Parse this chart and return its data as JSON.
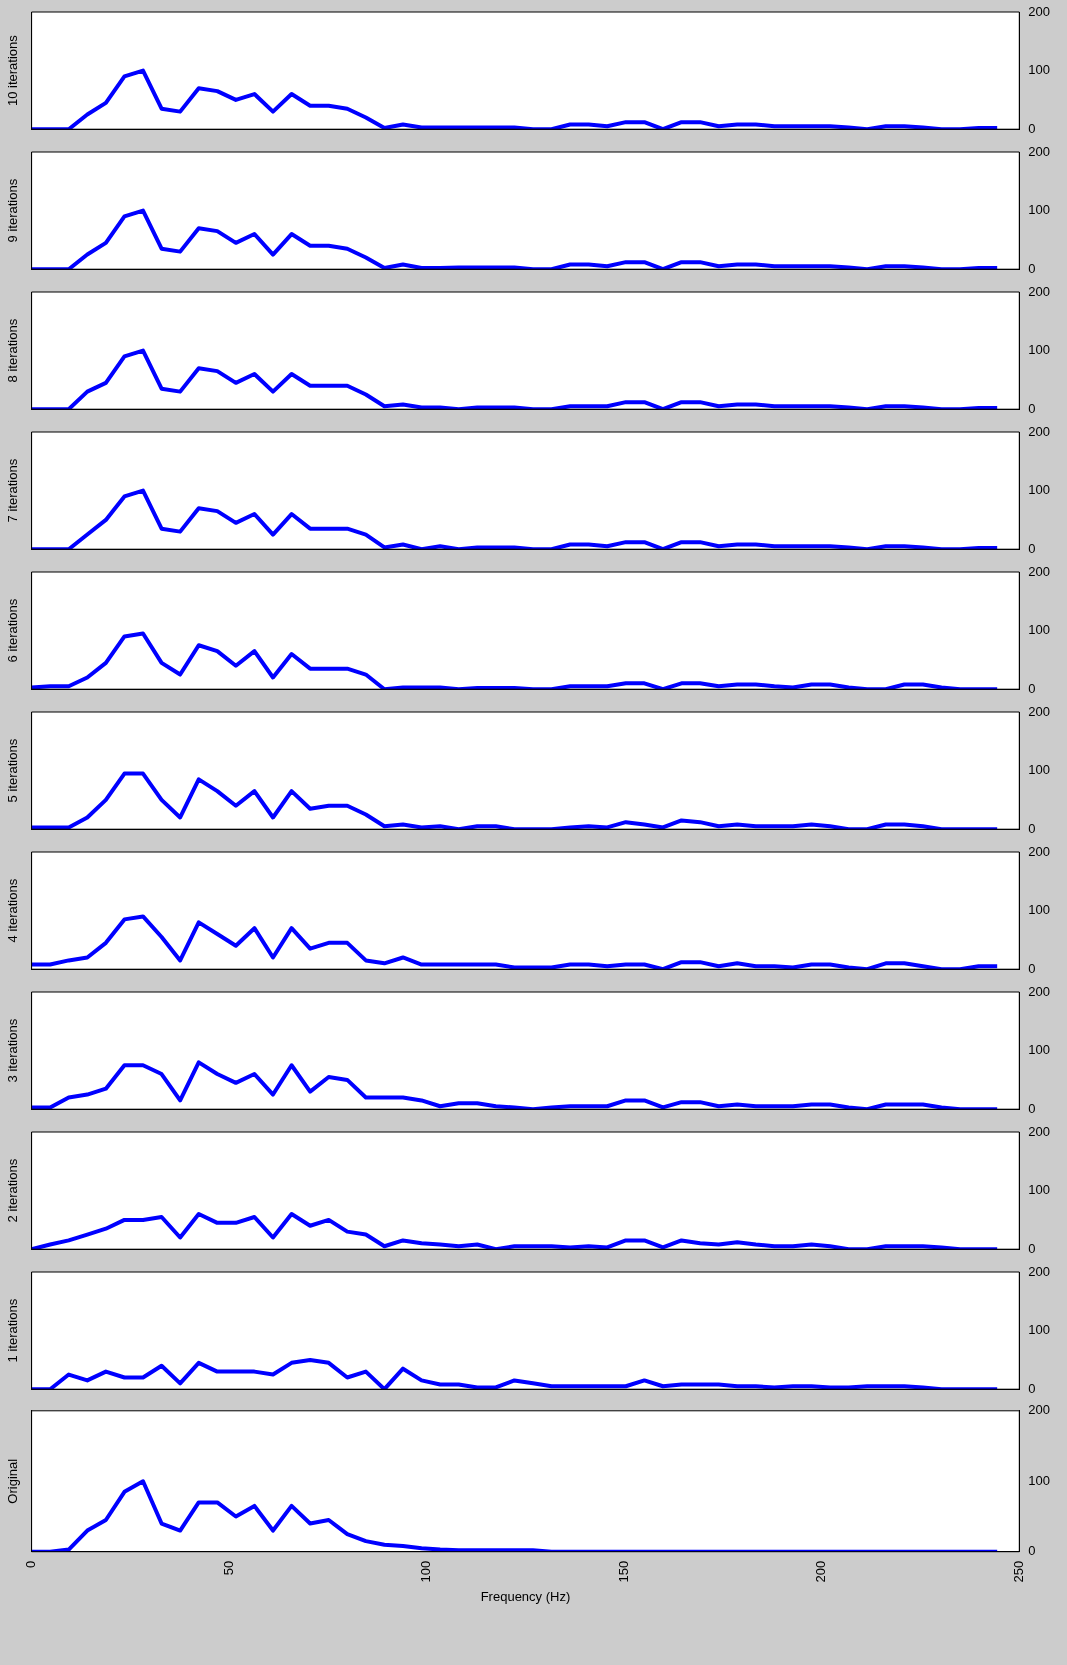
{
  "chart_data": [
    {
      "type": "line",
      "ylabel": "10 iterations",
      "color": "#0000ff",
      "tick_labels": "y",
      "xlim": [
        0,
        250
      ],
      "ylim": [
        0,
        200
      ],
      "yticks": [
        0,
        100,
        200
      ],
      "x": [
        0,
        4.7,
        9.4,
        14.1,
        18.8,
        23.5,
        28.2,
        32.9,
        37.6,
        42.3,
        47,
        51.7,
        56.4,
        61.1,
        65.8,
        70.5,
        75.2,
        79.9,
        84.6,
        89.3,
        94,
        98.7,
        103.4,
        108.1,
        112.8,
        117.5,
        122.2,
        126.9,
        131.6,
        136.3,
        141,
        145.7,
        150.4,
        155.1,
        159.8,
        164.5,
        169.2,
        173.9,
        178.6,
        183.3,
        188,
        192.7,
        197.4,
        202.1,
        206.8,
        211.5,
        216.2,
        220.9,
        225.6,
        230.3,
        235,
        239.7,
        244.4
      ],
      "values": [
        0,
        0,
        0,
        25,
        45,
        90,
        100,
        35,
        30,
        70,
        65,
        50,
        60,
        30,
        60,
        40,
        40,
        35,
        20,
        2,
        8,
        3,
        3,
        3,
        3,
        3,
        3,
        0,
        0,
        8,
        8,
        5,
        12,
        12,
        0,
        12,
        12,
        5,
        8,
        8,
        5,
        5,
        5,
        5,
        3,
        0,
        5,
        5,
        3,
        0,
        0,
        2,
        2
      ]
    },
    {
      "type": "line",
      "ylabel": "9 iterations",
      "color": "#0000ff",
      "tick_labels": "y",
      "xlim": [
        0,
        250
      ],
      "ylim": [
        0,
        200
      ],
      "yticks": [
        0,
        100,
        200
      ],
      "x": [
        0,
        4.7,
        9.4,
        14.1,
        18.8,
        23.5,
        28.2,
        32.9,
        37.6,
        42.3,
        47,
        51.7,
        56.4,
        61.1,
        65.8,
        70.5,
        75.2,
        79.9,
        84.6,
        89.3,
        94,
        98.7,
        103.4,
        108.1,
        112.8,
        117.5,
        122.2,
        126.9,
        131.6,
        136.3,
        141,
        145.7,
        150.4,
        155.1,
        159.8,
        164.5,
        169.2,
        173.9,
        178.6,
        183.3,
        188,
        192.7,
        197.4,
        202.1,
        206.8,
        211.5,
        216.2,
        220.9,
        225.6,
        230.3,
        235,
        239.7,
        244.4
      ],
      "values": [
        0,
        0,
        0,
        25,
        45,
        90,
        100,
        35,
        30,
        70,
        65,
        45,
        60,
        25,
        60,
        40,
        40,
        35,
        20,
        2,
        8,
        2,
        2,
        3,
        3,
        3,
        3,
        0,
        0,
        8,
        8,
        5,
        12,
        12,
        0,
        12,
        12,
        5,
        8,
        8,
        5,
        5,
        5,
        5,
        3,
        0,
        5,
        5,
        3,
        0,
        0,
        2,
        2
      ]
    },
    {
      "type": "line",
      "ylabel": "8 iterations",
      "color": "#0000ff",
      "tick_labels": "y",
      "xlim": [
        0,
        250
      ],
      "ylim": [
        0,
        200
      ],
      "yticks": [
        0,
        100,
        200
      ],
      "x": [
        0,
        4.7,
        9.4,
        14.1,
        18.8,
        23.5,
        28.2,
        32.9,
        37.6,
        42.3,
        47,
        51.7,
        56.4,
        61.1,
        65.8,
        70.5,
        75.2,
        79.9,
        84.6,
        89.3,
        94,
        98.7,
        103.4,
        108.1,
        112.8,
        117.5,
        122.2,
        126.9,
        131.6,
        136.3,
        141,
        145.7,
        150.4,
        155.1,
        159.8,
        164.5,
        169.2,
        173.9,
        178.6,
        183.3,
        188,
        192.7,
        197.4,
        202.1,
        206.8,
        211.5,
        216.2,
        220.9,
        225.6,
        230.3,
        235,
        239.7,
        244.4
      ],
      "values": [
        0,
        0,
        0,
        30,
        45,
        90,
        100,
        35,
        30,
        70,
        65,
        45,
        60,
        30,
        60,
        40,
        40,
        40,
        25,
        5,
        8,
        3,
        3,
        0,
        3,
        3,
        3,
        0,
        0,
        5,
        5,
        5,
        12,
        12,
        0,
        12,
        12,
        5,
        8,
        8,
        5,
        5,
        5,
        5,
        3,
        0,
        5,
        5,
        3,
        0,
        0,
        2,
        2
      ]
    },
    {
      "type": "line",
      "ylabel": "7 iterations",
      "color": "#0000ff",
      "tick_labels": "y",
      "xlim": [
        0,
        250
      ],
      "ylim": [
        0,
        200
      ],
      "yticks": [
        0,
        100,
        200
      ],
      "x": [
        0,
        4.7,
        9.4,
        14.1,
        18.8,
        23.5,
        28.2,
        32.9,
        37.6,
        42.3,
        47,
        51.7,
        56.4,
        61.1,
        65.8,
        70.5,
        75.2,
        79.9,
        84.6,
        89.3,
        94,
        98.7,
        103.4,
        108.1,
        112.8,
        117.5,
        122.2,
        126.9,
        131.6,
        136.3,
        141,
        145.7,
        150.4,
        155.1,
        159.8,
        164.5,
        169.2,
        173.9,
        178.6,
        183.3,
        188,
        192.7,
        197.4,
        202.1,
        206.8,
        211.5,
        216.2,
        220.9,
        225.6,
        230.3,
        235,
        239.7,
        244.4
      ],
      "values": [
        0,
        0,
        0,
        25,
        50,
        90,
        100,
        35,
        30,
        70,
        65,
        45,
        60,
        25,
        60,
        35,
        35,
        35,
        25,
        3,
        8,
        0,
        5,
        0,
        3,
        3,
        3,
        0,
        0,
        8,
        8,
        5,
        12,
        12,
        0,
        12,
        12,
        5,
        8,
        8,
        5,
        5,
        5,
        5,
        3,
        0,
        5,
        5,
        3,
        0,
        0,
        2,
        2
      ]
    },
    {
      "type": "line",
      "ylabel": "6 iterations",
      "color": "#0000ff",
      "tick_labels": "y",
      "xlim": [
        0,
        250
      ],
      "ylim": [
        0,
        200
      ],
      "yticks": [
        0,
        100,
        200
      ],
      "x": [
        0,
        4.7,
        9.4,
        14.1,
        18.8,
        23.5,
        28.2,
        32.9,
        37.6,
        42.3,
        47,
        51.7,
        56.4,
        61.1,
        65.8,
        70.5,
        75.2,
        79.9,
        84.6,
        89.3,
        94,
        98.7,
        103.4,
        108.1,
        112.8,
        117.5,
        122.2,
        126.9,
        131.6,
        136.3,
        141,
        145.7,
        150.4,
        155.1,
        159.8,
        164.5,
        169.2,
        173.9,
        178.6,
        183.3,
        188,
        192.7,
        197.4,
        202.1,
        206.8,
        211.5,
        216.2,
        220.9,
        225.6,
        230.3,
        235,
        239.7,
        244.4
      ],
      "values": [
        3,
        5,
        5,
        20,
        45,
        90,
        95,
        45,
        25,
        75,
        65,
        40,
        65,
        20,
        60,
        35,
        35,
        35,
        25,
        0,
        3,
        3,
        3,
        0,
        2,
        2,
        2,
        0,
        0,
        5,
        5,
        5,
        10,
        10,
        0,
        10,
        10,
        5,
        8,
        8,
        5,
        3,
        8,
        8,
        3,
        0,
        0,
        8,
        8,
        3,
        0,
        0,
        0
      ]
    },
    {
      "type": "line",
      "ylabel": "5 iterations",
      "color": "#0000ff",
      "tick_labels": "y",
      "xlim": [
        0,
        250
      ],
      "ylim": [
        0,
        200
      ],
      "yticks": [
        0,
        100,
        200
      ],
      "x": [
        0,
        4.7,
        9.4,
        14.1,
        18.8,
        23.5,
        28.2,
        32.9,
        37.6,
        42.3,
        47,
        51.7,
        56.4,
        61.1,
        65.8,
        70.5,
        75.2,
        79.9,
        84.6,
        89.3,
        94,
        98.7,
        103.4,
        108.1,
        112.8,
        117.5,
        122.2,
        126.9,
        131.6,
        136.3,
        141,
        145.7,
        150.4,
        155.1,
        159.8,
        164.5,
        169.2,
        173.9,
        178.6,
        183.3,
        188,
        192.7,
        197.4,
        202.1,
        206.8,
        211.5,
        216.2,
        220.9,
        225.6,
        230.3,
        235,
        239.7,
        244.4
      ],
      "values": [
        3,
        3,
        3,
        20,
        50,
        95,
        95,
        50,
        20,
        85,
        65,
        40,
        65,
        20,
        65,
        35,
        40,
        40,
        25,
        5,
        8,
        3,
        5,
        0,
        5,
        5,
        0,
        0,
        0,
        3,
        5,
        3,
        12,
        8,
        3,
        15,
        12,
        5,
        8,
        5,
        5,
        5,
        8,
        5,
        0,
        0,
        8,
        8,
        5,
        0,
        0,
        0,
        0
      ]
    },
    {
      "type": "line",
      "ylabel": "4 iterations",
      "color": "#0000ff",
      "tick_labels": "y",
      "xlim": [
        0,
        250
      ],
      "ylim": [
        0,
        200
      ],
      "yticks": [
        0,
        100,
        200
      ],
      "x": [
        0,
        4.7,
        9.4,
        14.1,
        18.8,
        23.5,
        28.2,
        32.9,
        37.6,
        42.3,
        47,
        51.7,
        56.4,
        61.1,
        65.8,
        70.5,
        75.2,
        79.9,
        84.6,
        89.3,
        94,
        98.7,
        103.4,
        108.1,
        112.8,
        117.5,
        122.2,
        126.9,
        131.6,
        136.3,
        141,
        145.7,
        150.4,
        155.1,
        159.8,
        164.5,
        169.2,
        173.9,
        178.6,
        183.3,
        188,
        192.7,
        197.4,
        202.1,
        206.8,
        211.5,
        216.2,
        220.9,
        225.6,
        230.3,
        235,
        239.7,
        244.4
      ],
      "values": [
        8,
        8,
        15,
        20,
        45,
        85,
        90,
        55,
        15,
        80,
        60,
        40,
        70,
        20,
        70,
        35,
        45,
        45,
        15,
        10,
        20,
        8,
        8,
        8,
        8,
        8,
        3,
        3,
        3,
        8,
        8,
        5,
        8,
        8,
        0,
        12,
        12,
        5,
        10,
        5,
        5,
        3,
        8,
        8,
        3,
        0,
        10,
        10,
        5,
        0,
        0,
        5,
        5
      ]
    },
    {
      "type": "line",
      "ylabel": "3 iterations",
      "color": "#0000ff",
      "tick_labels": "y",
      "xlim": [
        0,
        250
      ],
      "ylim": [
        0,
        200
      ],
      "yticks": [
        0,
        100,
        200
      ],
      "x": [
        0,
        4.7,
        9.4,
        14.1,
        18.8,
        23.5,
        28.2,
        32.9,
        37.6,
        42.3,
        47,
        51.7,
        56.4,
        61.1,
        65.8,
        70.5,
        75.2,
        79.9,
        84.6,
        89.3,
        94,
        98.7,
        103.4,
        108.1,
        112.8,
        117.5,
        122.2,
        126.9,
        131.6,
        136.3,
        141,
        145.7,
        150.4,
        155.1,
        159.8,
        164.5,
        169.2,
        173.9,
        178.6,
        183.3,
        188,
        192.7,
        197.4,
        202.1,
        206.8,
        211.5,
        216.2,
        220.9,
        225.6,
        230.3,
        235,
        239.7,
        244.4
      ],
      "values": [
        3,
        3,
        20,
        25,
        35,
        75,
        75,
        60,
        15,
        80,
        60,
        45,
        60,
        25,
        75,
        30,
        55,
        50,
        20,
        20,
        20,
        15,
        5,
        10,
        10,
        5,
        3,
        0,
        3,
        5,
        5,
        5,
        15,
        15,
        3,
        12,
        12,
        5,
        8,
        5,
        5,
        5,
        8,
        8,
        3,
        0,
        8,
        8,
        8,
        3,
        0,
        0,
        0
      ]
    },
    {
      "type": "line",
      "ylabel": "2 iterations",
      "color": "#0000ff",
      "tick_labels": "y",
      "xlim": [
        0,
        250
      ],
      "ylim": [
        0,
        200
      ],
      "yticks": [
        0,
        100,
        200
      ],
      "x": [
        0,
        4.7,
        9.4,
        14.1,
        18.8,
        23.5,
        28.2,
        32.9,
        37.6,
        42.3,
        47,
        51.7,
        56.4,
        61.1,
        65.8,
        70.5,
        75.2,
        79.9,
        84.6,
        89.3,
        94,
        98.7,
        103.4,
        108.1,
        112.8,
        117.5,
        122.2,
        126.9,
        131.6,
        136.3,
        141,
        145.7,
        150.4,
        155.1,
        159.8,
        164.5,
        169.2,
        173.9,
        178.6,
        183.3,
        188,
        192.7,
        197.4,
        202.1,
        206.8,
        211.5,
        216.2,
        220.9,
        225.6,
        230.3,
        235,
        239.7,
        244.4
      ],
      "values": [
        0,
        8,
        15,
        25,
        35,
        50,
        50,
        55,
        20,
        60,
        45,
        45,
        55,
        20,
        60,
        40,
        50,
        30,
        25,
        5,
        15,
        10,
        8,
        5,
        8,
        0,
        5,
        5,
        5,
        3,
        5,
        3,
        15,
        15,
        3,
        15,
        10,
        8,
        12,
        8,
        5,
        5,
        8,
        5,
        0,
        0,
        5,
        5,
        5,
        3,
        0,
        0,
        0
      ]
    },
    {
      "type": "line",
      "ylabel": "1 iterations",
      "color": "#0000ff",
      "tick_labels": "y",
      "xlim": [
        0,
        250
      ],
      "ylim": [
        0,
        200
      ],
      "yticks": [
        0,
        100,
        200
      ],
      "x": [
        0,
        4.7,
        9.4,
        14.1,
        18.8,
        23.5,
        28.2,
        32.9,
        37.6,
        42.3,
        47,
        51.7,
        56.4,
        61.1,
        65.8,
        70.5,
        75.2,
        79.9,
        84.6,
        89.3,
        94,
        98.7,
        103.4,
        108.1,
        112.8,
        117.5,
        122.2,
        126.9,
        131.6,
        136.3,
        141,
        145.7,
        150.4,
        155.1,
        159.8,
        164.5,
        169.2,
        173.9,
        178.6,
        183.3,
        188,
        192.7,
        197.4,
        202.1,
        206.8,
        211.5,
        216.2,
        220.9,
        225.6,
        230.3,
        235,
        239.7,
        244.4
      ],
      "values": [
        0,
        0,
        25,
        15,
        30,
        20,
        20,
        40,
        10,
        45,
        30,
        30,
        30,
        25,
        45,
        50,
        45,
        20,
        30,
        0,
        35,
        15,
        8,
        8,
        3,
        3,
        15,
        10,
        5,
        5,
        5,
        5,
        5,
        15,
        5,
        8,
        8,
        8,
        5,
        5,
        3,
        5,
        5,
        3,
        3,
        5,
        5,
        5,
        3,
        0,
        0,
        0,
        0
      ]
    },
    {
      "type": "line",
      "ylabel": "Original",
      "xlabel": "Frequency (Hz)",
      "color": "#0000ff",
      "xlim": [
        0,
        250
      ],
      "xticks": [
        0,
        50,
        100,
        150,
        200,
        250
      ],
      "ylim": [
        0,
        200
      ],
      "yticks": [
        0,
        100,
        200
      ],
      "x": [
        0,
        4.7,
        9.4,
        14.1,
        18.8,
        23.5,
        28.2,
        32.9,
        37.6,
        42.3,
        47,
        51.7,
        56.4,
        61.1,
        65.8,
        70.5,
        75.2,
        79.9,
        84.6,
        89.3,
        94,
        98.7,
        103.4,
        108.1,
        112.8,
        117.5,
        122.2,
        126.9,
        131.6,
        136.3,
        141,
        145.7,
        150.4,
        155.1,
        159.8,
        164.5,
        169.2,
        173.9,
        178.6,
        183.3,
        188,
        192.7,
        197.4,
        202.1,
        206.8,
        211.5,
        216.2,
        220.9,
        225.6,
        230.3,
        235,
        239.7,
        244.4
      ],
      "values": [
        0,
        0,
        3,
        30,
        45,
        85,
        100,
        40,
        30,
        70,
        70,
        50,
        65,
        30,
        65,
        40,
        45,
        25,
        15,
        10,
        8,
        5,
        3,
        2,
        2,
        2,
        2,
        2,
        0,
        0,
        0,
        0,
        0,
        0,
        0,
        0,
        0,
        0,
        0,
        0,
        0,
        0,
        0,
        0,
        0,
        0,
        0,
        0,
        0,
        0,
        0,
        0,
        0
      ]
    }
  ]
}
